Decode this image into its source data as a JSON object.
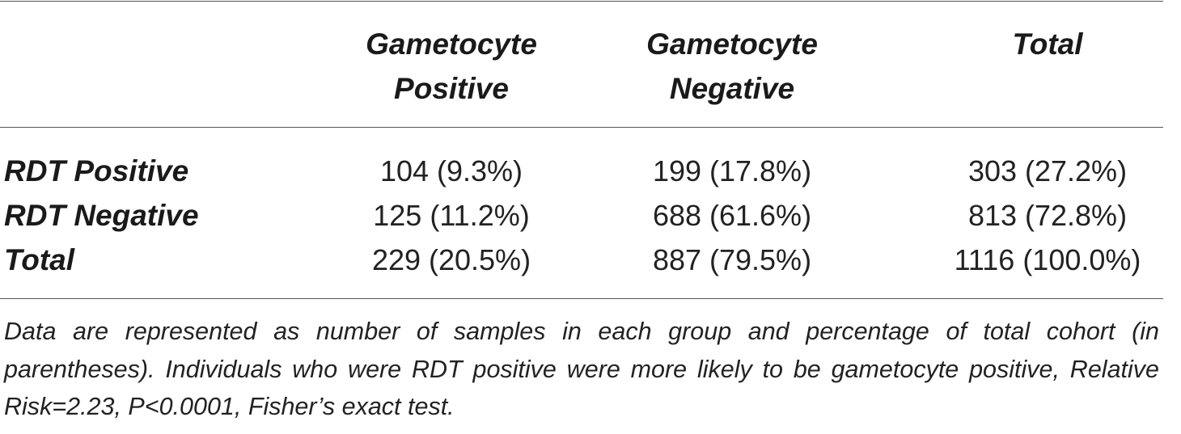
{
  "table": {
    "columns": [
      "",
      "Gametocyte Positive",
      "Gametocyte Negative",
      "Total"
    ],
    "header_lines": [
      [
        "Gametocyte",
        "Positive"
      ],
      [
        "Gametocyte",
        "Negative"
      ],
      [
        "Total"
      ]
    ],
    "rows": [
      {
        "label": "RDT Positive",
        "cells": [
          "104 (9.3%)",
          "199 (17.8%)",
          "303 (27.2%)"
        ]
      },
      {
        "label": "RDT Negative",
        "cells": [
          "125 (11.2%)",
          "688 (61.6%)",
          "813 (72.8%)"
        ]
      },
      {
        "label": "Total",
        "cells": [
          "229 (20.5%)",
          "887 (79.5%)",
          "1116 (100.0%)"
        ]
      }
    ]
  },
  "footnote": "Data are represented as number of samples in each group and percentage of total cohort (in parentheses). Individuals who were RDT positive were more likely to be gametocyte positive, Relative Risk=2.23, P<0.0001, Fisher’s exact test."
}
